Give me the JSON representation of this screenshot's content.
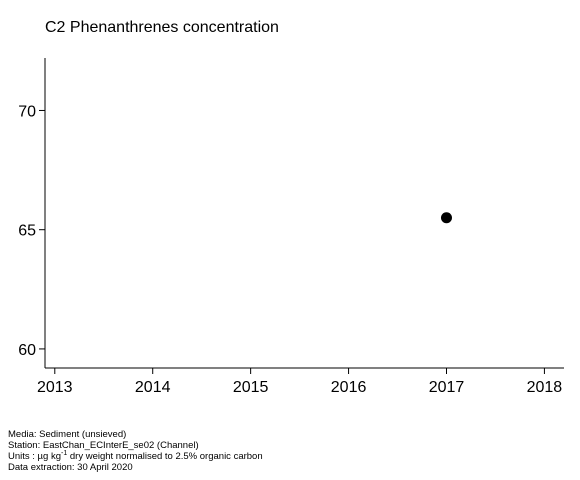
{
  "chart_data": {
    "type": "scatter",
    "title": "C2 Phenanthrenes concentration",
    "xlabel": "",
    "ylabel": "",
    "xlim": [
      2012.9,
      2018.2
    ],
    "ylim": [
      59.2,
      72.2
    ],
    "x_ticks": [
      2013,
      2014,
      2015,
      2016,
      2017,
      2018
    ],
    "y_ticks": [
      60,
      65,
      70
    ],
    "grid": false,
    "points": [
      {
        "x": 2017.0,
        "y": 65.5
      }
    ],
    "marker_color": "#000000"
  },
  "footer": {
    "media": "Media: Sediment (unsieved)",
    "station": "Station: EastChan_ECInterE_se02 (Channel)",
    "units_prefix": "Units : µg kg",
    "units_sup": "-1",
    "units_suffix": " dry weight normalised to 2.5% organic carbon",
    "extraction": "Data extraction: 30 April 2020"
  }
}
